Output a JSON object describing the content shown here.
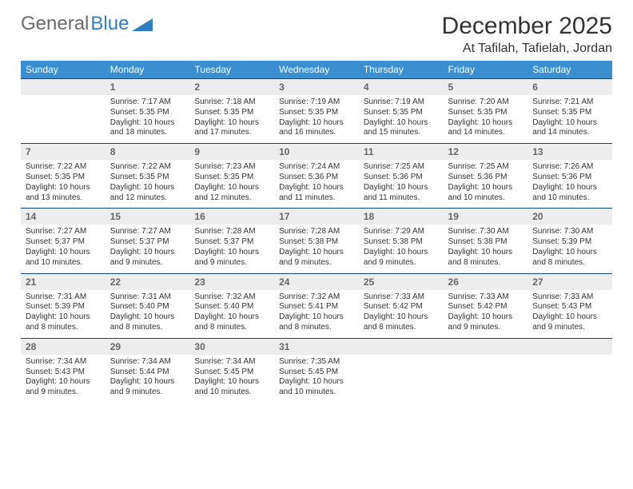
{
  "brand": {
    "part1": "General",
    "part2": "Blue"
  },
  "header": {
    "month": "December 2025",
    "location": "At Tafilah, Tafielah, Jordan"
  },
  "colors": {
    "header_bg": "#3a8fd0",
    "daynum_bg": "#ededed",
    "rule": "#14457a",
    "brand_blue": "#2f7fc2"
  },
  "weekdays": [
    "Sunday",
    "Monday",
    "Tuesday",
    "Wednesday",
    "Thursday",
    "Friday",
    "Saturday"
  ],
  "weeks": [
    [
      null,
      {
        "n": "1",
        "sr": "7:17 AM",
        "ss": "5:35 PM",
        "dl": "10 hours and 18 minutes."
      },
      {
        "n": "2",
        "sr": "7:18 AM",
        "ss": "5:35 PM",
        "dl": "10 hours and 17 minutes."
      },
      {
        "n": "3",
        "sr": "7:19 AM",
        "ss": "5:35 PM",
        "dl": "10 hours and 16 minutes."
      },
      {
        "n": "4",
        "sr": "7:19 AM",
        "ss": "5:35 PM",
        "dl": "10 hours and 15 minutes."
      },
      {
        "n": "5",
        "sr": "7:20 AM",
        "ss": "5:35 PM",
        "dl": "10 hours and 14 minutes."
      },
      {
        "n": "6",
        "sr": "7:21 AM",
        "ss": "5:35 PM",
        "dl": "10 hours and 14 minutes."
      }
    ],
    [
      {
        "n": "7",
        "sr": "7:22 AM",
        "ss": "5:35 PM",
        "dl": "10 hours and 13 minutes."
      },
      {
        "n": "8",
        "sr": "7:22 AM",
        "ss": "5:35 PM",
        "dl": "10 hours and 12 minutes."
      },
      {
        "n": "9",
        "sr": "7:23 AM",
        "ss": "5:35 PM",
        "dl": "10 hours and 12 minutes."
      },
      {
        "n": "10",
        "sr": "7:24 AM",
        "ss": "5:36 PM",
        "dl": "10 hours and 11 minutes."
      },
      {
        "n": "11",
        "sr": "7:25 AM",
        "ss": "5:36 PM",
        "dl": "10 hours and 11 minutes."
      },
      {
        "n": "12",
        "sr": "7:25 AM",
        "ss": "5:36 PM",
        "dl": "10 hours and 10 minutes."
      },
      {
        "n": "13",
        "sr": "7:26 AM",
        "ss": "5:36 PM",
        "dl": "10 hours and 10 minutes."
      }
    ],
    [
      {
        "n": "14",
        "sr": "7:27 AM",
        "ss": "5:37 PM",
        "dl": "10 hours and 10 minutes."
      },
      {
        "n": "15",
        "sr": "7:27 AM",
        "ss": "5:37 PM",
        "dl": "10 hours and 9 minutes."
      },
      {
        "n": "16",
        "sr": "7:28 AM",
        "ss": "5:37 PM",
        "dl": "10 hours and 9 minutes."
      },
      {
        "n": "17",
        "sr": "7:28 AM",
        "ss": "5:38 PM",
        "dl": "10 hours and 9 minutes."
      },
      {
        "n": "18",
        "sr": "7:29 AM",
        "ss": "5:38 PM",
        "dl": "10 hours and 9 minutes."
      },
      {
        "n": "19",
        "sr": "7:30 AM",
        "ss": "5:38 PM",
        "dl": "10 hours and 8 minutes."
      },
      {
        "n": "20",
        "sr": "7:30 AM",
        "ss": "5:39 PM",
        "dl": "10 hours and 8 minutes."
      }
    ],
    [
      {
        "n": "21",
        "sr": "7:31 AM",
        "ss": "5:39 PM",
        "dl": "10 hours and 8 minutes."
      },
      {
        "n": "22",
        "sr": "7:31 AM",
        "ss": "5:40 PM",
        "dl": "10 hours and 8 minutes."
      },
      {
        "n": "23",
        "sr": "7:32 AM",
        "ss": "5:40 PM",
        "dl": "10 hours and 8 minutes."
      },
      {
        "n": "24",
        "sr": "7:32 AM",
        "ss": "5:41 PM",
        "dl": "10 hours and 8 minutes."
      },
      {
        "n": "25",
        "sr": "7:33 AM",
        "ss": "5:42 PM",
        "dl": "10 hours and 8 minutes."
      },
      {
        "n": "26",
        "sr": "7:33 AM",
        "ss": "5:42 PM",
        "dl": "10 hours and 9 minutes."
      },
      {
        "n": "27",
        "sr": "7:33 AM",
        "ss": "5:43 PM",
        "dl": "10 hours and 9 minutes."
      }
    ],
    [
      {
        "n": "28",
        "sr": "7:34 AM",
        "ss": "5:43 PM",
        "dl": "10 hours and 9 minutes."
      },
      {
        "n": "29",
        "sr": "7:34 AM",
        "ss": "5:44 PM",
        "dl": "10 hours and 9 minutes."
      },
      {
        "n": "30",
        "sr": "7:34 AM",
        "ss": "5:45 PM",
        "dl": "10 hours and 10 minutes."
      },
      {
        "n": "31",
        "sr": "7:35 AM",
        "ss": "5:45 PM",
        "dl": "10 hours and 10 minutes."
      },
      null,
      null,
      null
    ]
  ],
  "labels": {
    "sunrise": "Sunrise:",
    "sunset": "Sunset:",
    "daylight": "Daylight:"
  }
}
